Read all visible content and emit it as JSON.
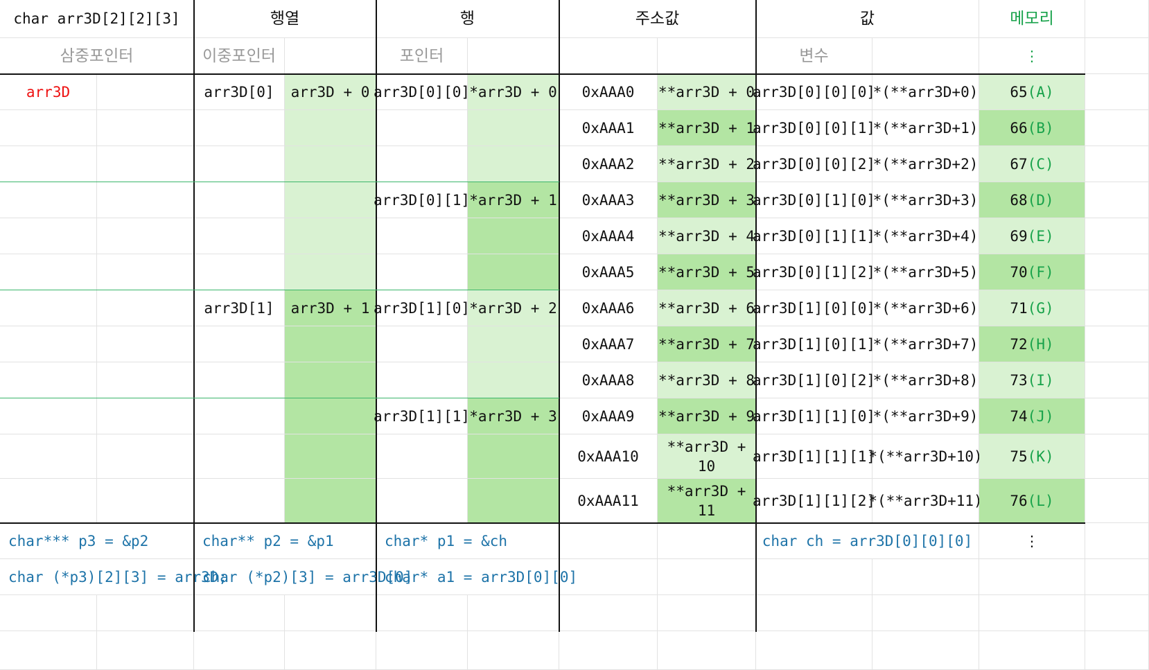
{
  "header": {
    "title": "char arr3D[2][2][3]",
    "col_matrix": "행열",
    "col_row": "행",
    "col_address": "주소값",
    "col_value": "값",
    "col_memory": "메모리"
  },
  "subheader": {
    "triple": "삼중포인터",
    "double": "이중포인터",
    "single": "포인터",
    "variable": "변수",
    "memory_dots": "⋮"
  },
  "array_name": "arr3D",
  "matrix": [
    {
      "name": "arr3D[0]",
      "expr": "arr3D + 0"
    },
    {
      "name": "arr3D[1]",
      "expr": "arr3D + 1"
    }
  ],
  "rows": [
    {
      "name": "arr3D[0][0]",
      "expr": "*arr3D + 0"
    },
    {
      "name": "arr3D[0][1]",
      "expr": "*arr3D + 1"
    },
    {
      "name": "arr3D[1][0]",
      "expr": "*arr3D + 2"
    },
    {
      "name": "arr3D[1][1]",
      "expr": "*arr3D + 3"
    }
  ],
  "elements": [
    {
      "addr": "0xAAA0",
      "addr_expr": "**arr3D + 0",
      "var": "arr3D[0][0][0]",
      "deref": "*(**arr3D+0)",
      "num": "65",
      "char": "(A)"
    },
    {
      "addr": "0xAAA1",
      "addr_expr": "**arr3D + 1",
      "var": "arr3D[0][0][1]",
      "deref": "*(**arr3D+1)",
      "num": "66",
      "char": "(B)"
    },
    {
      "addr": "0xAAA2",
      "addr_expr": "**arr3D + 2",
      "var": "arr3D[0][0][2]",
      "deref": "*(**arr3D+2)",
      "num": "67",
      "char": "(C)"
    },
    {
      "addr": "0xAAA3",
      "addr_expr": "**arr3D + 3",
      "var": "arr3D[0][1][0]",
      "deref": "*(**arr3D+3)",
      "num": "68",
      "char": "(D)"
    },
    {
      "addr": "0xAAA4",
      "addr_expr": "**arr3D + 4",
      "var": "arr3D[0][1][1]",
      "deref": "*(**arr3D+4)",
      "num": "69",
      "char": "(E)"
    },
    {
      "addr": "0xAAA5",
      "addr_expr": "**arr3D + 5",
      "var": "arr3D[0][1][2]",
      "deref": "*(**arr3D+5)",
      "num": "70",
      "char": "(F)"
    },
    {
      "addr": "0xAAA6",
      "addr_expr": "**arr3D + 6",
      "var": "arr3D[1][0][0]",
      "deref": "*(**arr3D+6)",
      "num": "71",
      "char": "(G)"
    },
    {
      "addr": "0xAAA7",
      "addr_expr": "**arr3D + 7",
      "var": "arr3D[1][0][1]",
      "deref": "*(**arr3D+7)",
      "num": "72",
      "char": "(H)"
    },
    {
      "addr": "0xAAA8",
      "addr_expr": "**arr3D + 8",
      "var": "arr3D[1][0][2]",
      "deref": "*(**arr3D+8)",
      "num": "73",
      "char": "(I)"
    },
    {
      "addr": "0xAAA9",
      "addr_expr": "**arr3D + 9",
      "var": "arr3D[1][1][0]",
      "deref": "*(**arr3D+9)",
      "num": "74",
      "char": "(J)"
    },
    {
      "addr": "0xAAA10",
      "addr_expr": "**arr3D + 10",
      "var": "arr3D[1][1][1]",
      "deref": "*(**arr3D+10)",
      "num": "75",
      "char": "(K)"
    },
    {
      "addr": "0xAAA11",
      "addr_expr": "**arr3D + 11",
      "var": "arr3D[1][1][2]",
      "deref": "*(**arr3D+11)",
      "num": "76",
      "char": "(L)"
    }
  ],
  "declarations": {
    "row1": {
      "triple": "char*** p3 = &p2",
      "double": "char** p2 = &p1",
      "single": "char* p1 = &ch",
      "variable": "char ch = arr3D[0][0][0]",
      "memory_dots": "⋮"
    },
    "row2": {
      "triple": "char (*p3)[2][3] = arr3D;",
      "double": "char (*p2)[3] = arr3D[0]",
      "single": "char* a1 = arr3D[0][0]"
    }
  },
  "colors": {
    "light_green": "#d9f2d2",
    "green": "#b3e5a3",
    "accent_green": "#17a24a",
    "code_blue": "#1d73a8",
    "array_red": "#ee1111"
  }
}
